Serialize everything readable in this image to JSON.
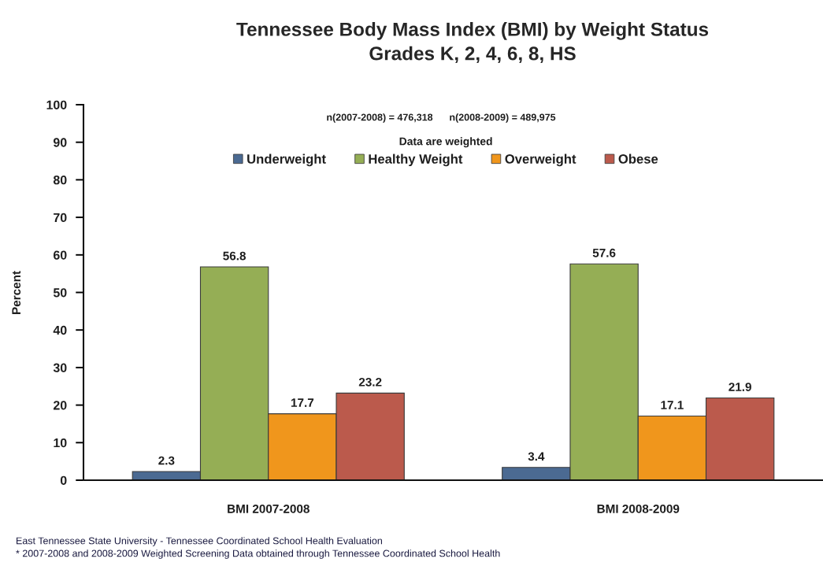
{
  "chart_data": {
    "type": "bar",
    "title": "Tennessee Body Mass Index (BMI) by Weight Status\nGrades K, 2, 4, 6, 8, HS",
    "subtitle": "n(2007-2008) = 476,318      n(2008-2009) = 489,975",
    "legend_title": "Data are weighted",
    "ylabel": "Percent",
    "categories": [
      "BMI 2007-2008",
      "BMI 2008-2009"
    ],
    "series": [
      {
        "name": "Underweight",
        "color": "#4b6a92",
        "values": [
          2.3,
          3.4
        ]
      },
      {
        "name": "Healthy Weight",
        "color": "#95ae55",
        "values": [
          56.8,
          57.6
        ]
      },
      {
        "name": "Overweight",
        "color": "#f0961c",
        "values": [
          17.7,
          17.1
        ]
      },
      {
        "name": "Obese",
        "color": "#bb5a4c",
        "values": [
          23.2,
          21.9
        ]
      }
    ],
    "ylim": [
      0,
      100
    ],
    "yticks": [
      0,
      10,
      20,
      30,
      40,
      50,
      60,
      70,
      80,
      90,
      100
    ],
    "data_labels": true,
    "legend": "top",
    "annotations": [
      "East Tennessee State University - Tennessee Coordinated School Health Evaluation",
      "* 2007-2008 and 2008-2009 Weighted Screening Data obtained through Tennessee Coordinated School Health"
    ]
  }
}
